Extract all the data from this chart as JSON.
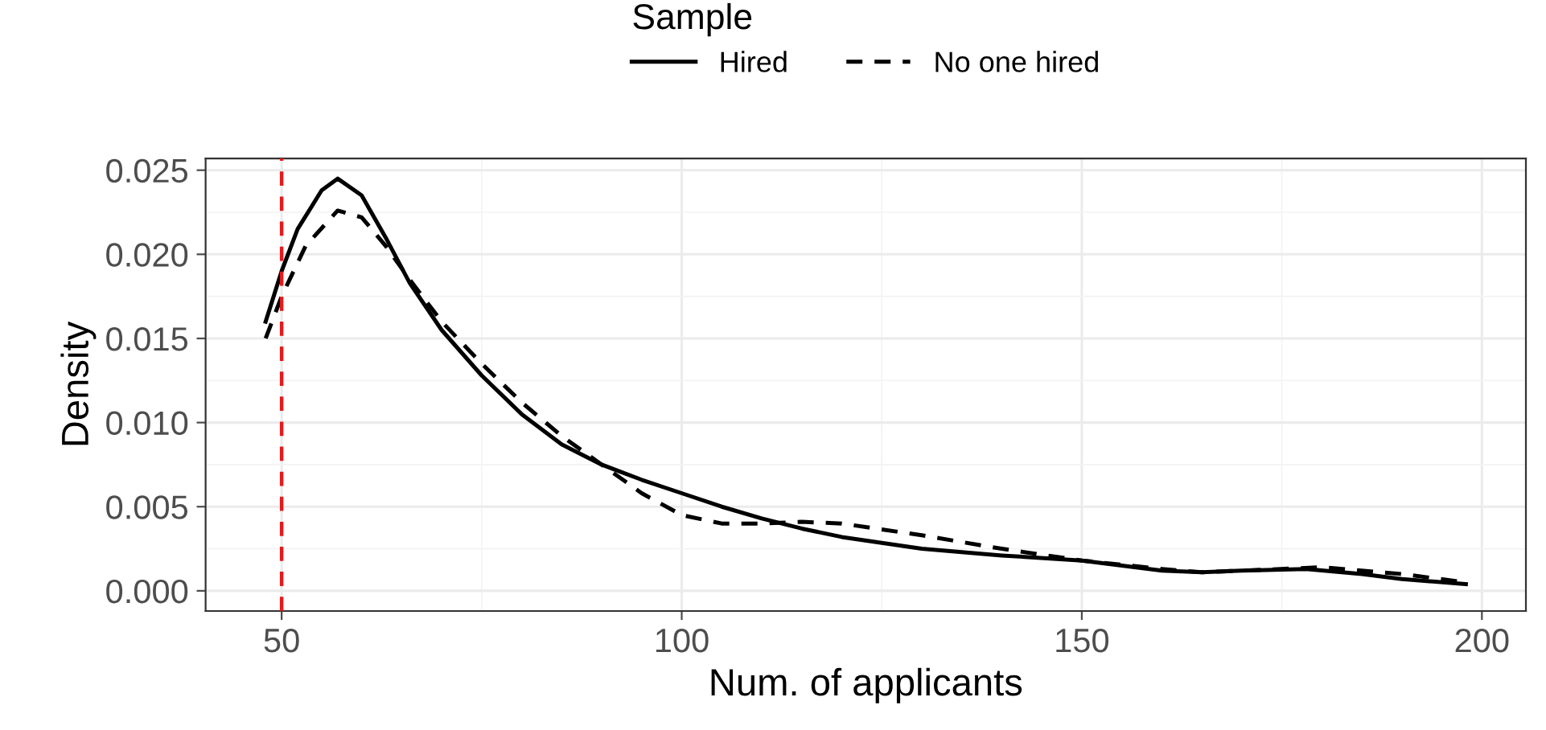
{
  "chart_data": {
    "type": "line",
    "xlabel": "Num. of applicants",
    "ylabel": "Density",
    "legend_title": "Sample",
    "legend": "top",
    "grid": true,
    "xlim": [
      40.5,
      205.5
    ],
    "xticks": [
      50,
      100,
      150,
      200
    ],
    "ylim": [
      -0.0012,
      0.0257
    ],
    "yticks": [
      {
        "value": 0,
        "label": "0.000"
      },
      {
        "value": 0.005,
        "label": "0.005"
      },
      {
        "value": 0.01,
        "label": "0.010"
      },
      {
        "value": 0.015,
        "label": "0.015"
      },
      {
        "value": 0.02,
        "label": "0.020"
      },
      {
        "value": 0.025,
        "label": "0.025"
      }
    ],
    "series": [
      {
        "name": "Hired",
        "color": "#000000",
        "line_style": "solid",
        "x": [
          48,
          50,
          52,
          55,
          57,
          60,
          63,
          66,
          70,
          75,
          80,
          85,
          90,
          95,
          100,
          105,
          110,
          115,
          120,
          130,
          140,
          150,
          160,
          165,
          170,
          178,
          185,
          190,
          198
        ],
        "values": [
          0.016,
          0.019,
          0.0215,
          0.0238,
          0.0245,
          0.0235,
          0.021,
          0.0183,
          0.0155,
          0.0128,
          0.0105,
          0.0087,
          0.0075,
          0.0066,
          0.0058,
          0.005,
          0.0043,
          0.0037,
          0.0032,
          0.0025,
          0.0021,
          0.0018,
          0.0012,
          0.0011,
          0.0012,
          0.0013,
          0.001,
          0.0007,
          0.0004
        ]
      },
      {
        "name": "No one hired",
        "color": "#000000",
        "line_style": "dashed",
        "x": [
          48,
          50,
          53,
          57,
          60,
          63,
          66,
          70,
          75,
          80,
          85,
          90,
          95,
          100,
          105,
          110,
          115,
          120,
          130,
          140,
          150,
          160,
          165,
          170,
          180,
          190,
          198
        ],
        "values": [
          0.015,
          0.0175,
          0.0205,
          0.0226,
          0.0222,
          0.0205,
          0.0185,
          0.016,
          0.0135,
          0.0112,
          0.0092,
          0.0075,
          0.0058,
          0.0045,
          0.004,
          0.004,
          0.0041,
          0.004,
          0.0033,
          0.0025,
          0.0018,
          0.0013,
          0.0011,
          0.0012,
          0.0014,
          0.001,
          0.0005
        ]
      }
    ],
    "ref_lines": [
      {
        "axis": "x",
        "value": 50,
        "color": "#e41a1c",
        "line_style": "dashed"
      }
    ]
  }
}
